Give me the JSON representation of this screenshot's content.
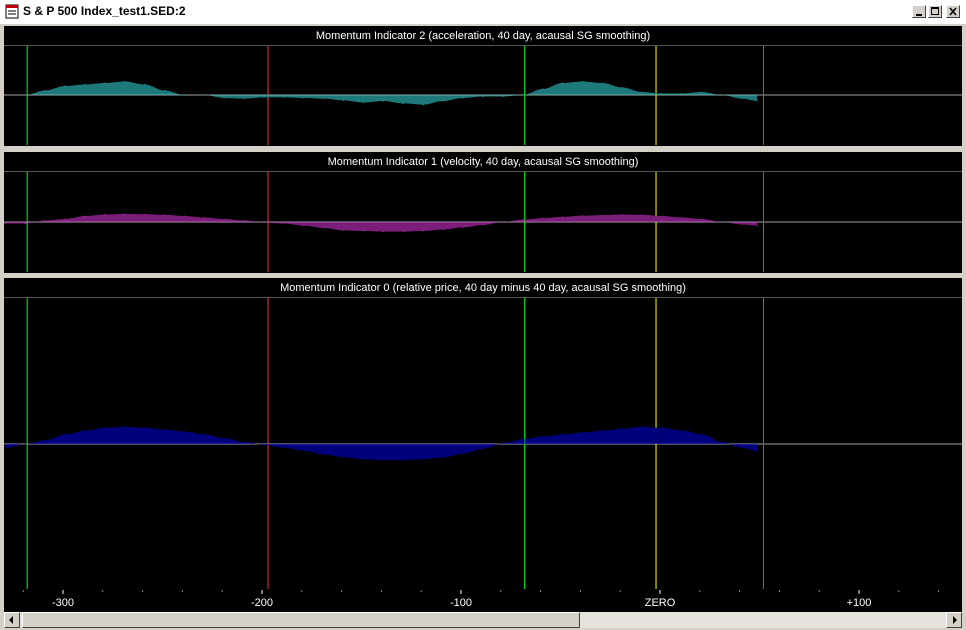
{
  "window": {
    "title": "S & P 500 Index_test1.SED:2"
  },
  "colors": {
    "zero_line": "#ffffff",
    "green_marker": "#00ff00",
    "red_marker": "#ff3030",
    "yellow_marker": "#ffff00",
    "background": "#000000"
  },
  "chart_data": [
    {
      "type": "area",
      "title": "Momentum Indicator 2 (acceleration, 40 day, acausal SG smoothing)",
      "color": "#33cccc",
      "xlim": [
        -329,
        150
      ],
      "ylim": [
        -1,
        1
      ],
      "x": [
        -329,
        -319,
        -309,
        -299,
        -289,
        -279,
        -269,
        -259,
        -249,
        -239,
        -229,
        -219,
        -209,
        -199,
        -189,
        -179,
        -169,
        -159,
        -149,
        -139,
        -129,
        -119,
        -109,
        -99,
        -89,
        -79,
        -69,
        -59,
        -49,
        -39,
        -29,
        -19,
        -9,
        1,
        11,
        21,
        31,
        41,
        49
      ],
      "y": [
        0,
        0,
        0.15,
        0.3,
        0.35,
        0.4,
        0.45,
        0.35,
        0.15,
        0,
        0,
        -0.1,
        -0.12,
        -0.08,
        -0.08,
        -0.1,
        -0.12,
        -0.18,
        -0.25,
        -0.2,
        -0.28,
        -0.32,
        -0.2,
        -0.1,
        -0.05,
        -0.05,
        0,
        0.2,
        0.4,
        0.45,
        0.4,
        0.25,
        0.1,
        0.05,
        0.05,
        0.1,
        0,
        -0.12,
        -0.2
      ]
    },
    {
      "type": "area",
      "title": "Momentum Indicator 1 (velocity, 40 day, acausal SG smoothing)",
      "color": "#cc33cc",
      "xlim": [
        -329,
        150
      ],
      "ylim": [
        -1,
        1
      ],
      "x": [
        -329,
        -319,
        -309,
        -299,
        -289,
        -279,
        -269,
        -259,
        -249,
        -239,
        -229,
        -219,
        -209,
        -199,
        -189,
        -179,
        -169,
        -159,
        -149,
        -139,
        -129,
        -119,
        -109,
        -99,
        -89,
        -79,
        -69,
        -59,
        -49,
        -39,
        -29,
        -19,
        -9,
        1,
        11,
        21,
        31,
        41,
        49
      ],
      "y": [
        -0.05,
        -0.05,
        0.05,
        0.1,
        0.2,
        0.25,
        0.27,
        0.26,
        0.24,
        0.2,
        0.15,
        0.1,
        0.05,
        -0.02,
        -0.05,
        -0.12,
        -0.2,
        -0.28,
        -0.3,
        -0.32,
        -0.32,
        -0.3,
        -0.25,
        -0.18,
        -0.1,
        0,
        0.08,
        0.13,
        0.17,
        0.21,
        0.23,
        0.25,
        0.24,
        0.2,
        0.15,
        0.1,
        0,
        -0.08,
        -0.12
      ]
    },
    {
      "type": "area",
      "title": "Momentum Indicator 0 (relative price, 40 day minus 40 day, acausal SG smoothing)",
      "color": "#0000cc",
      "xlim": [
        -329,
        150
      ],
      "ylim": [
        -1,
        1
      ],
      "xticks": [
        -300,
        -200,
        -100,
        0,
        100
      ],
      "xtick_labels": [
        "-300",
        "-200",
        "-100",
        "ZERO",
        "+100"
      ],
      "x": [
        -329,
        -319,
        -309,
        -299,
        -289,
        -279,
        -269,
        -259,
        -249,
        -239,
        -229,
        -219,
        -209,
        -199,
        -189,
        -179,
        -169,
        -159,
        -149,
        -139,
        -129,
        -119,
        -109,
        -99,
        -89,
        -79,
        -69,
        -59,
        -49,
        -39,
        -29,
        -19,
        -9,
        1,
        11,
        21,
        31,
        41,
        49
      ],
      "y": [
        -0.04,
        0,
        0.04,
        0.1,
        0.14,
        0.17,
        0.18,
        0.17,
        0.15,
        0.13,
        0.1,
        0.06,
        0.02,
        -0.01,
        -0.04,
        -0.07,
        -0.11,
        -0.14,
        -0.16,
        -0.17,
        -0.17,
        -0.16,
        -0.14,
        -0.1,
        -0.05,
        0.01,
        0.05,
        0.08,
        0.1,
        0.12,
        0.14,
        0.16,
        0.18,
        0.17,
        0.14,
        0.1,
        0.02,
        -0.04,
        -0.08
      ]
    }
  ],
  "vertical_markers": [
    {
      "x": -318,
      "color": "green"
    },
    {
      "x": -197,
      "color": "red"
    },
    {
      "x": -68,
      "color": "green"
    },
    {
      "x": -2,
      "color": "yellow"
    },
    {
      "x": 52,
      "color": "red"
    }
  ]
}
